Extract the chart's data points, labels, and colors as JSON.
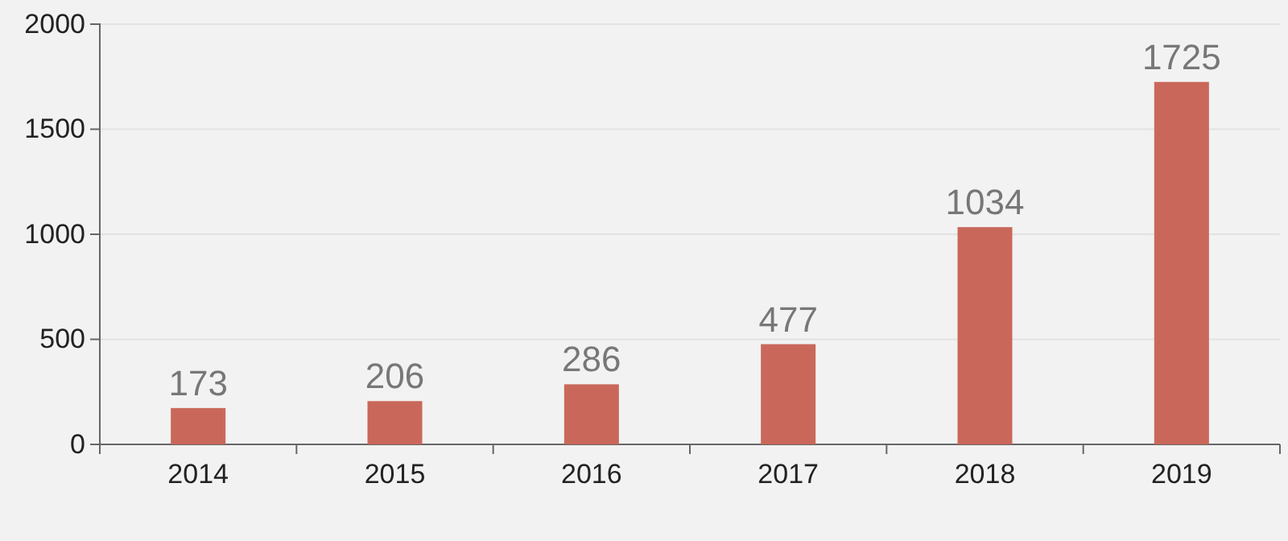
{
  "chart_data": {
    "type": "bar",
    "categories": [
      "2014",
      "2015",
      "2016",
      "2017",
      "2018",
      "2019"
    ],
    "values": [
      173,
      206,
      286,
      477,
      1034,
      1725
    ],
    "color": "#c9685a",
    "ylim": [
      0,
      2000
    ],
    "yticks": [
      0,
      500,
      1000,
      1500,
      2000
    ],
    "grid": "y",
    "data_labels": true
  }
}
